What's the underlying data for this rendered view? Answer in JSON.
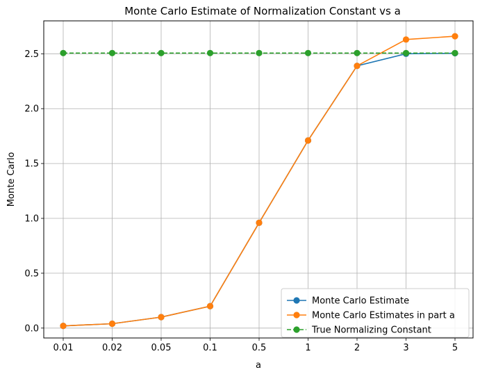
{
  "chart_data": {
    "type": "line",
    "title": "Monte Carlo Estimate of Normalization Constant vs a",
    "xlabel": "a",
    "ylabel": "Monte Carlo",
    "categories": [
      "0.01",
      "0.02",
      "0.05",
      "0.1",
      "0.5",
      "1",
      "2",
      "3",
      "5"
    ],
    "ylim": [
      -0.09,
      2.8
    ],
    "yticks": [
      0.0,
      0.5,
      1.0,
      1.5,
      2.0,
      2.5
    ],
    "ytick_labels": [
      "0.0",
      "0.5",
      "1.0",
      "1.5",
      "2.0",
      "2.5"
    ],
    "grid": true,
    "legend_position": "lower-right",
    "series": [
      {
        "name": "Monte Carlo Estimate",
        "color": "#1f77b4",
        "linestyle": "solid",
        "marker": "circle",
        "values": [
          0.02,
          0.04,
          0.1,
          0.2,
          0.96,
          1.71,
          2.39,
          2.5,
          2.505
        ]
      },
      {
        "name": "Monte Carlo Estimates in part a",
        "color": "#ff7f0e",
        "linestyle": "solid",
        "marker": "circle",
        "values": [
          0.02,
          0.04,
          0.1,
          0.2,
          0.96,
          1.71,
          2.39,
          2.63,
          2.66
        ]
      },
      {
        "name": "True Normalizing Constant",
        "color": "#2ca02c",
        "linestyle": "dashed",
        "marker": "circle",
        "values": [
          2.5066,
          2.5066,
          2.5066,
          2.5066,
          2.5066,
          2.5066,
          2.5066,
          2.5066,
          2.5066
        ]
      }
    ]
  }
}
